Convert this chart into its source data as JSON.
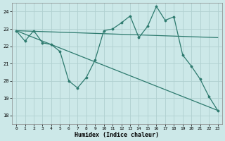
{
  "xlabel": "Humidex (Indice chaleur)",
  "bg_color": "#cce8e8",
  "grid_color": "#b0d0d0",
  "line_color": "#2d7a6e",
  "ylim": [
    17.5,
    24.5
  ],
  "xlim": [
    -0.5,
    23.5
  ],
  "yticks": [
    18,
    19,
    20,
    21,
    22,
    23,
    24
  ],
  "xticks": [
    0,
    1,
    2,
    3,
    4,
    5,
    6,
    7,
    8,
    9,
    10,
    11,
    12,
    13,
    14,
    15,
    16,
    17,
    18,
    19,
    20,
    21,
    22,
    23
  ],
  "line1_x": [
    0,
    1,
    2,
    3,
    4,
    5,
    6,
    7,
    8,
    9,
    10,
    11,
    12,
    13,
    14,
    15,
    16,
    17,
    18,
    19,
    20,
    21,
    22,
    23
  ],
  "line1_y": [
    22.9,
    22.3,
    22.9,
    22.2,
    22.1,
    21.7,
    20.0,
    19.6,
    20.2,
    21.2,
    22.9,
    23.0,
    23.35,
    23.75,
    22.5,
    23.15,
    24.3,
    23.5,
    23.7,
    21.5,
    20.85,
    20.1,
    19.1,
    18.3
  ],
  "line2_x": [
    0,
    23
  ],
  "line2_y": [
    22.9,
    22.5
  ],
  "line3_x": [
    0,
    23
  ],
  "line3_y": [
    22.9,
    18.3
  ]
}
